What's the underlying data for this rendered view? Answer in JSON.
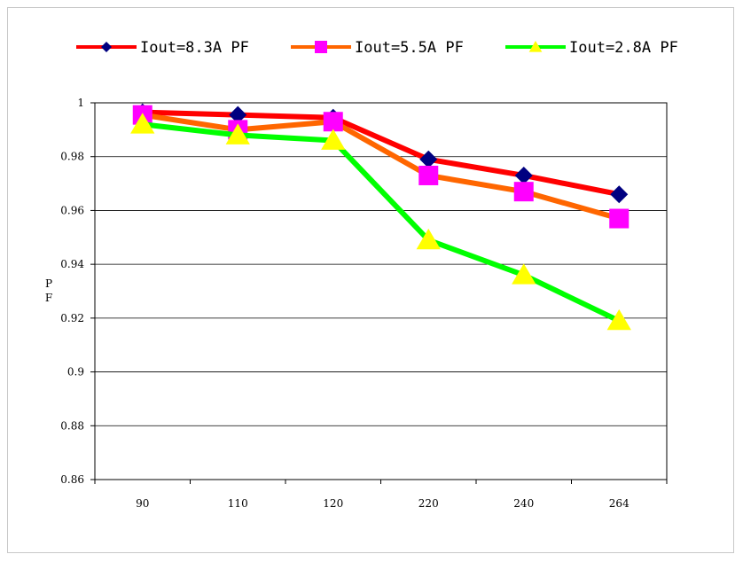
{
  "chart_data": {
    "type": "line",
    "categories": [
      "90",
      "110",
      "120",
      "220",
      "240",
      "264"
    ],
    "series": [
      {
        "name": "Iout=8.3A PF",
        "values": [
          0.9965,
          0.9955,
          0.9945,
          0.979,
          0.973,
          0.966
        ],
        "color": "#ff0000",
        "marker": "diamond",
        "marker_color": "#000080"
      },
      {
        "name": "Iout=5.5A PF",
        "values": [
          0.9955,
          0.99,
          0.993,
          0.973,
          0.967,
          0.957
        ],
        "color": "#ff6600",
        "marker": "square",
        "marker_color": "#ff00ff"
      },
      {
        "name": "Iout=2.8A PF",
        "values": [
          0.992,
          0.988,
          0.986,
          0.949,
          0.936,
          0.919
        ],
        "color": "#00ff00",
        "marker": "triangle",
        "marker_color": "#ffff00"
      }
    ],
    "title": "",
    "xlabel": "",
    "ylabel": "PF",
    "ylim": [
      0.86,
      1.0
    ],
    "yticks": [
      "0.86",
      "0.88",
      "0.9",
      "0.92",
      "0.94",
      "0.96",
      "0.98",
      "1"
    ],
    "grid": true,
    "legend_position": "top"
  }
}
